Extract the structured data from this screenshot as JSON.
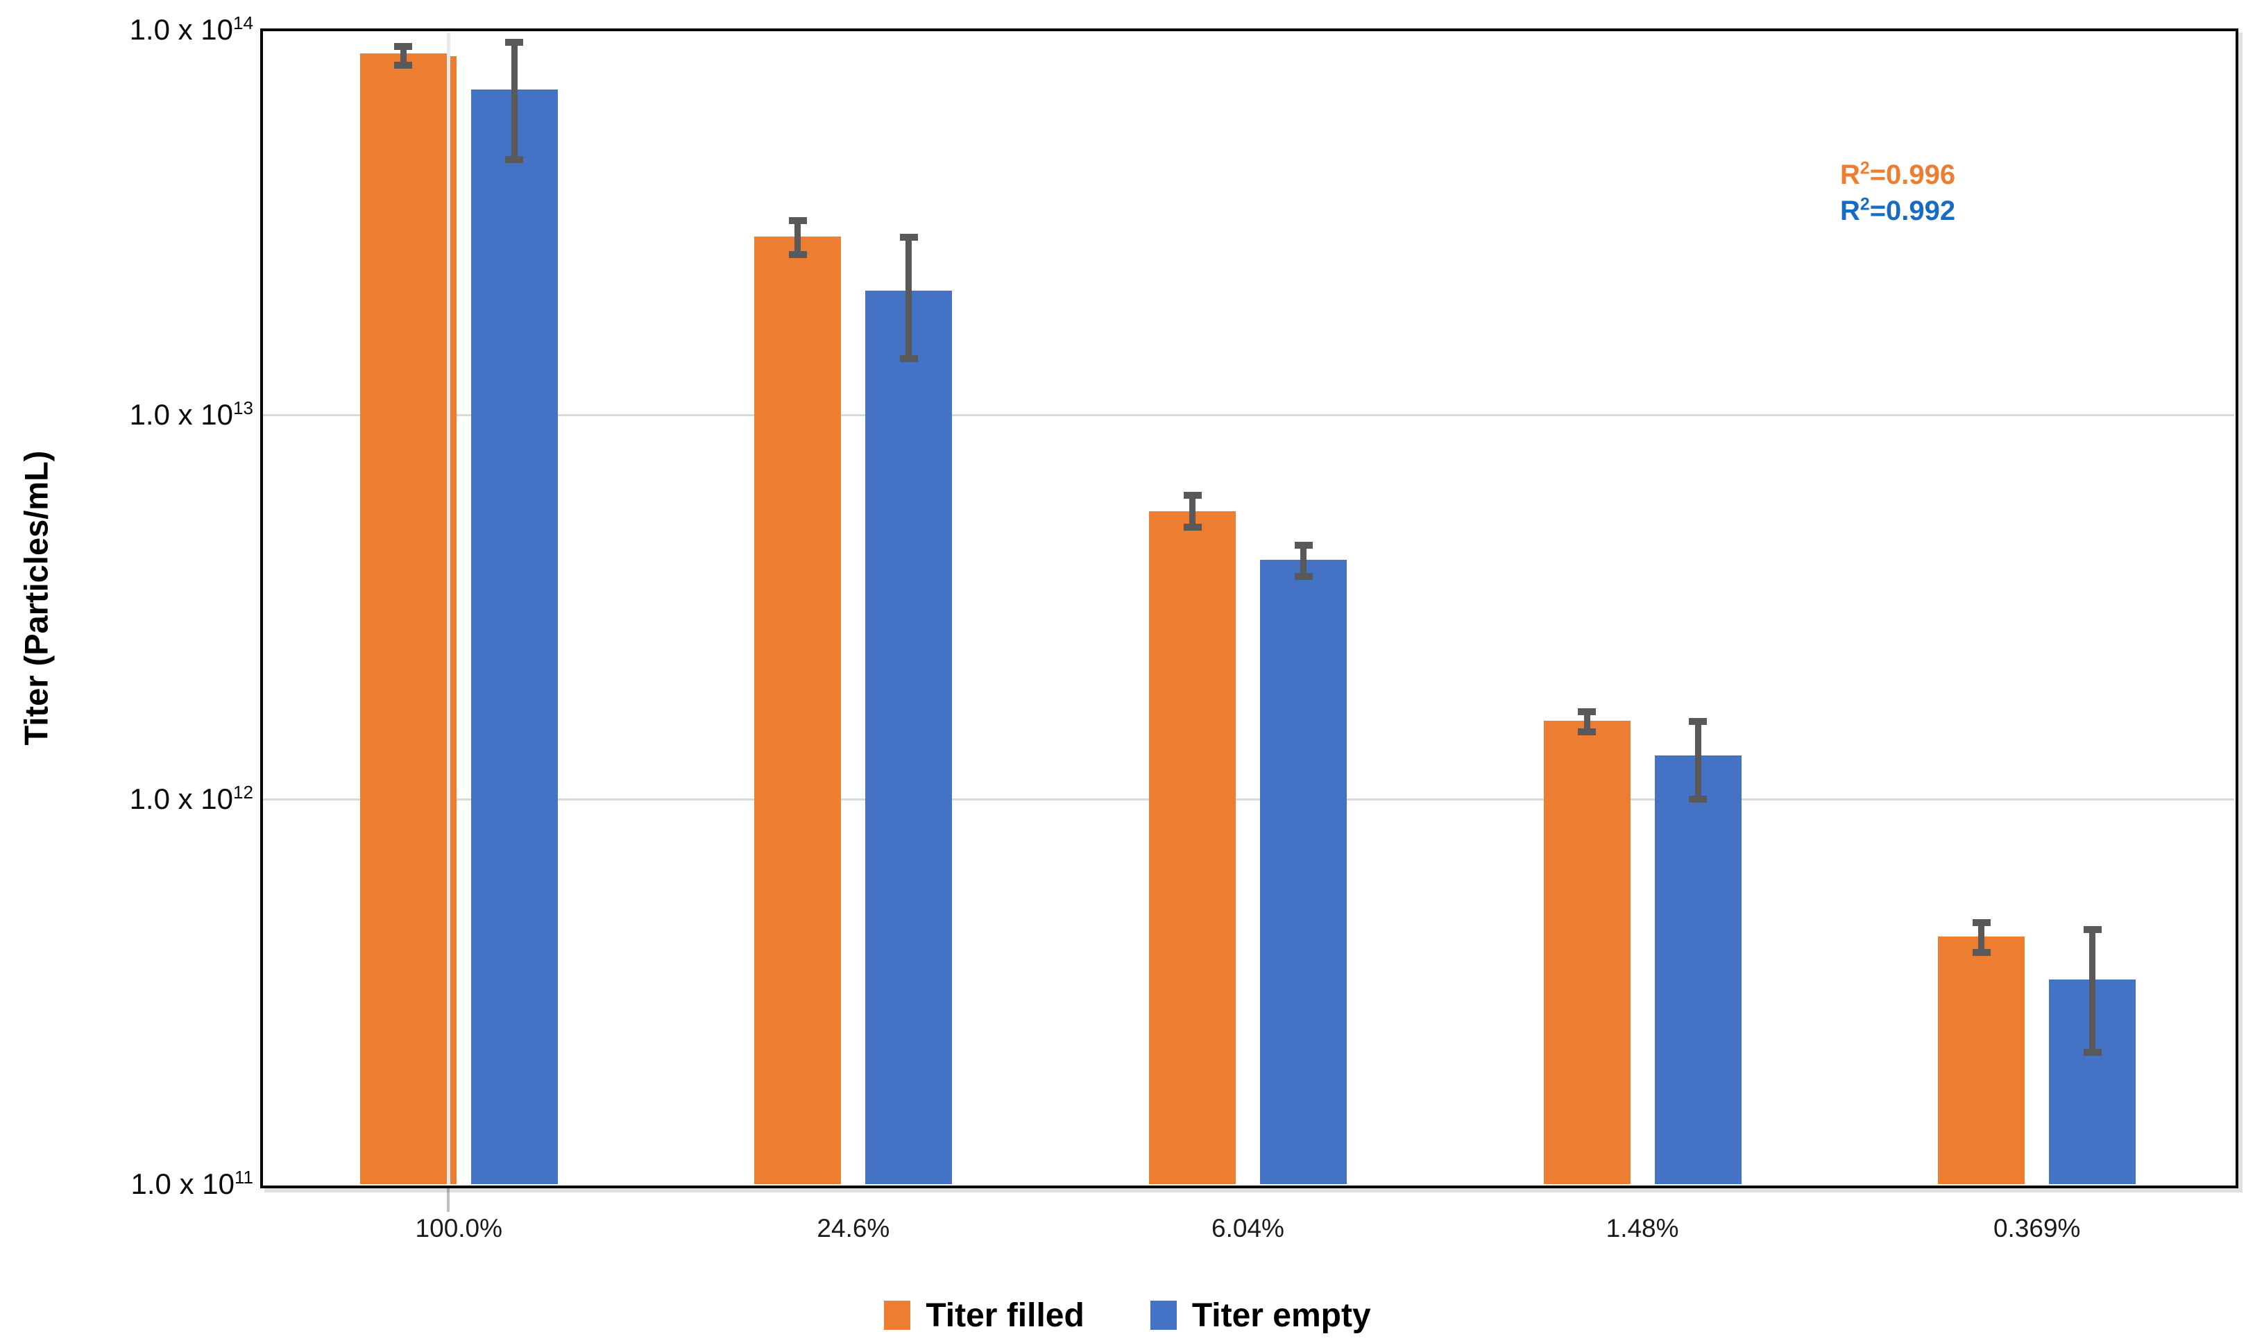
{
  "chart_data": {
    "type": "bar",
    "title": "",
    "xlabel": "",
    "ylabel": "Titer (Particles/mL)",
    "categories": [
      "100.0%",
      "24.6%",
      "6.04%",
      "1.48%",
      "0.369%"
    ],
    "series": [
      {
        "name": "Titer filled",
        "color": "#ED7D31",
        "values": [
          87000000000000.0,
          29000000000000.0,
          5600000000000.0,
          1600000000000.0,
          440000000000.0
        ],
        "error_high": [
          91000000000000.0,
          32000000000000.0,
          6200000000000.0,
          1700000000000.0,
          480000000000.0
        ],
        "error_low": [
          81000000000000.0,
          26000000000000.0,
          5100000000000.0,
          1500000000000.0,
          400000000000.0
        ]
      },
      {
        "name": "Titer empty",
        "color": "#4472C4",
        "values": [
          70000000000000.0,
          21000000000000.0,
          4200000000000.0,
          1300000000000.0,
          340000000000.0
        ],
        "error_high": [
          93000000000000.0,
          29000000000000.0,
          4600000000000.0,
          1600000000000.0,
          460000000000.0
        ],
        "error_low": [
          46000000000000.0,
          14000000000000.0,
          3800000000000.0,
          1000000000000.0,
          220000000000.0
        ]
      }
    ],
    "yaxis": {
      "scale": "log",
      "min": 100000000000.0,
      "max": 100000000000000.0,
      "ticks": [
        {
          "mantissa": "1.0 x 10",
          "exponent": "14",
          "value": 100000000000000.0
        },
        {
          "mantissa": "1.0 x 10",
          "exponent": "13",
          "value": 10000000000000.0
        },
        {
          "mantissa": "1.0 x 10",
          "exponent": "12",
          "value": 1000000000000.0
        },
        {
          "mantissa": "1.0 x 10",
          "exponent": "11",
          "value": 100000000000.0
        }
      ]
    },
    "grid": "horizontal-major",
    "legend_position": "bottom",
    "annotations": [
      {
        "prefix": "R",
        "sup": "2",
        "rest": "=0.996",
        "color": "#ED7D31"
      },
      {
        "prefix": "R",
        "sup": "2",
        "rest": "=0.992",
        "color": "#166CC4"
      }
    ],
    "error_bar_color": "#595959",
    "gridline_color": "#D9D9D9",
    "axis_color": "#000000"
  }
}
